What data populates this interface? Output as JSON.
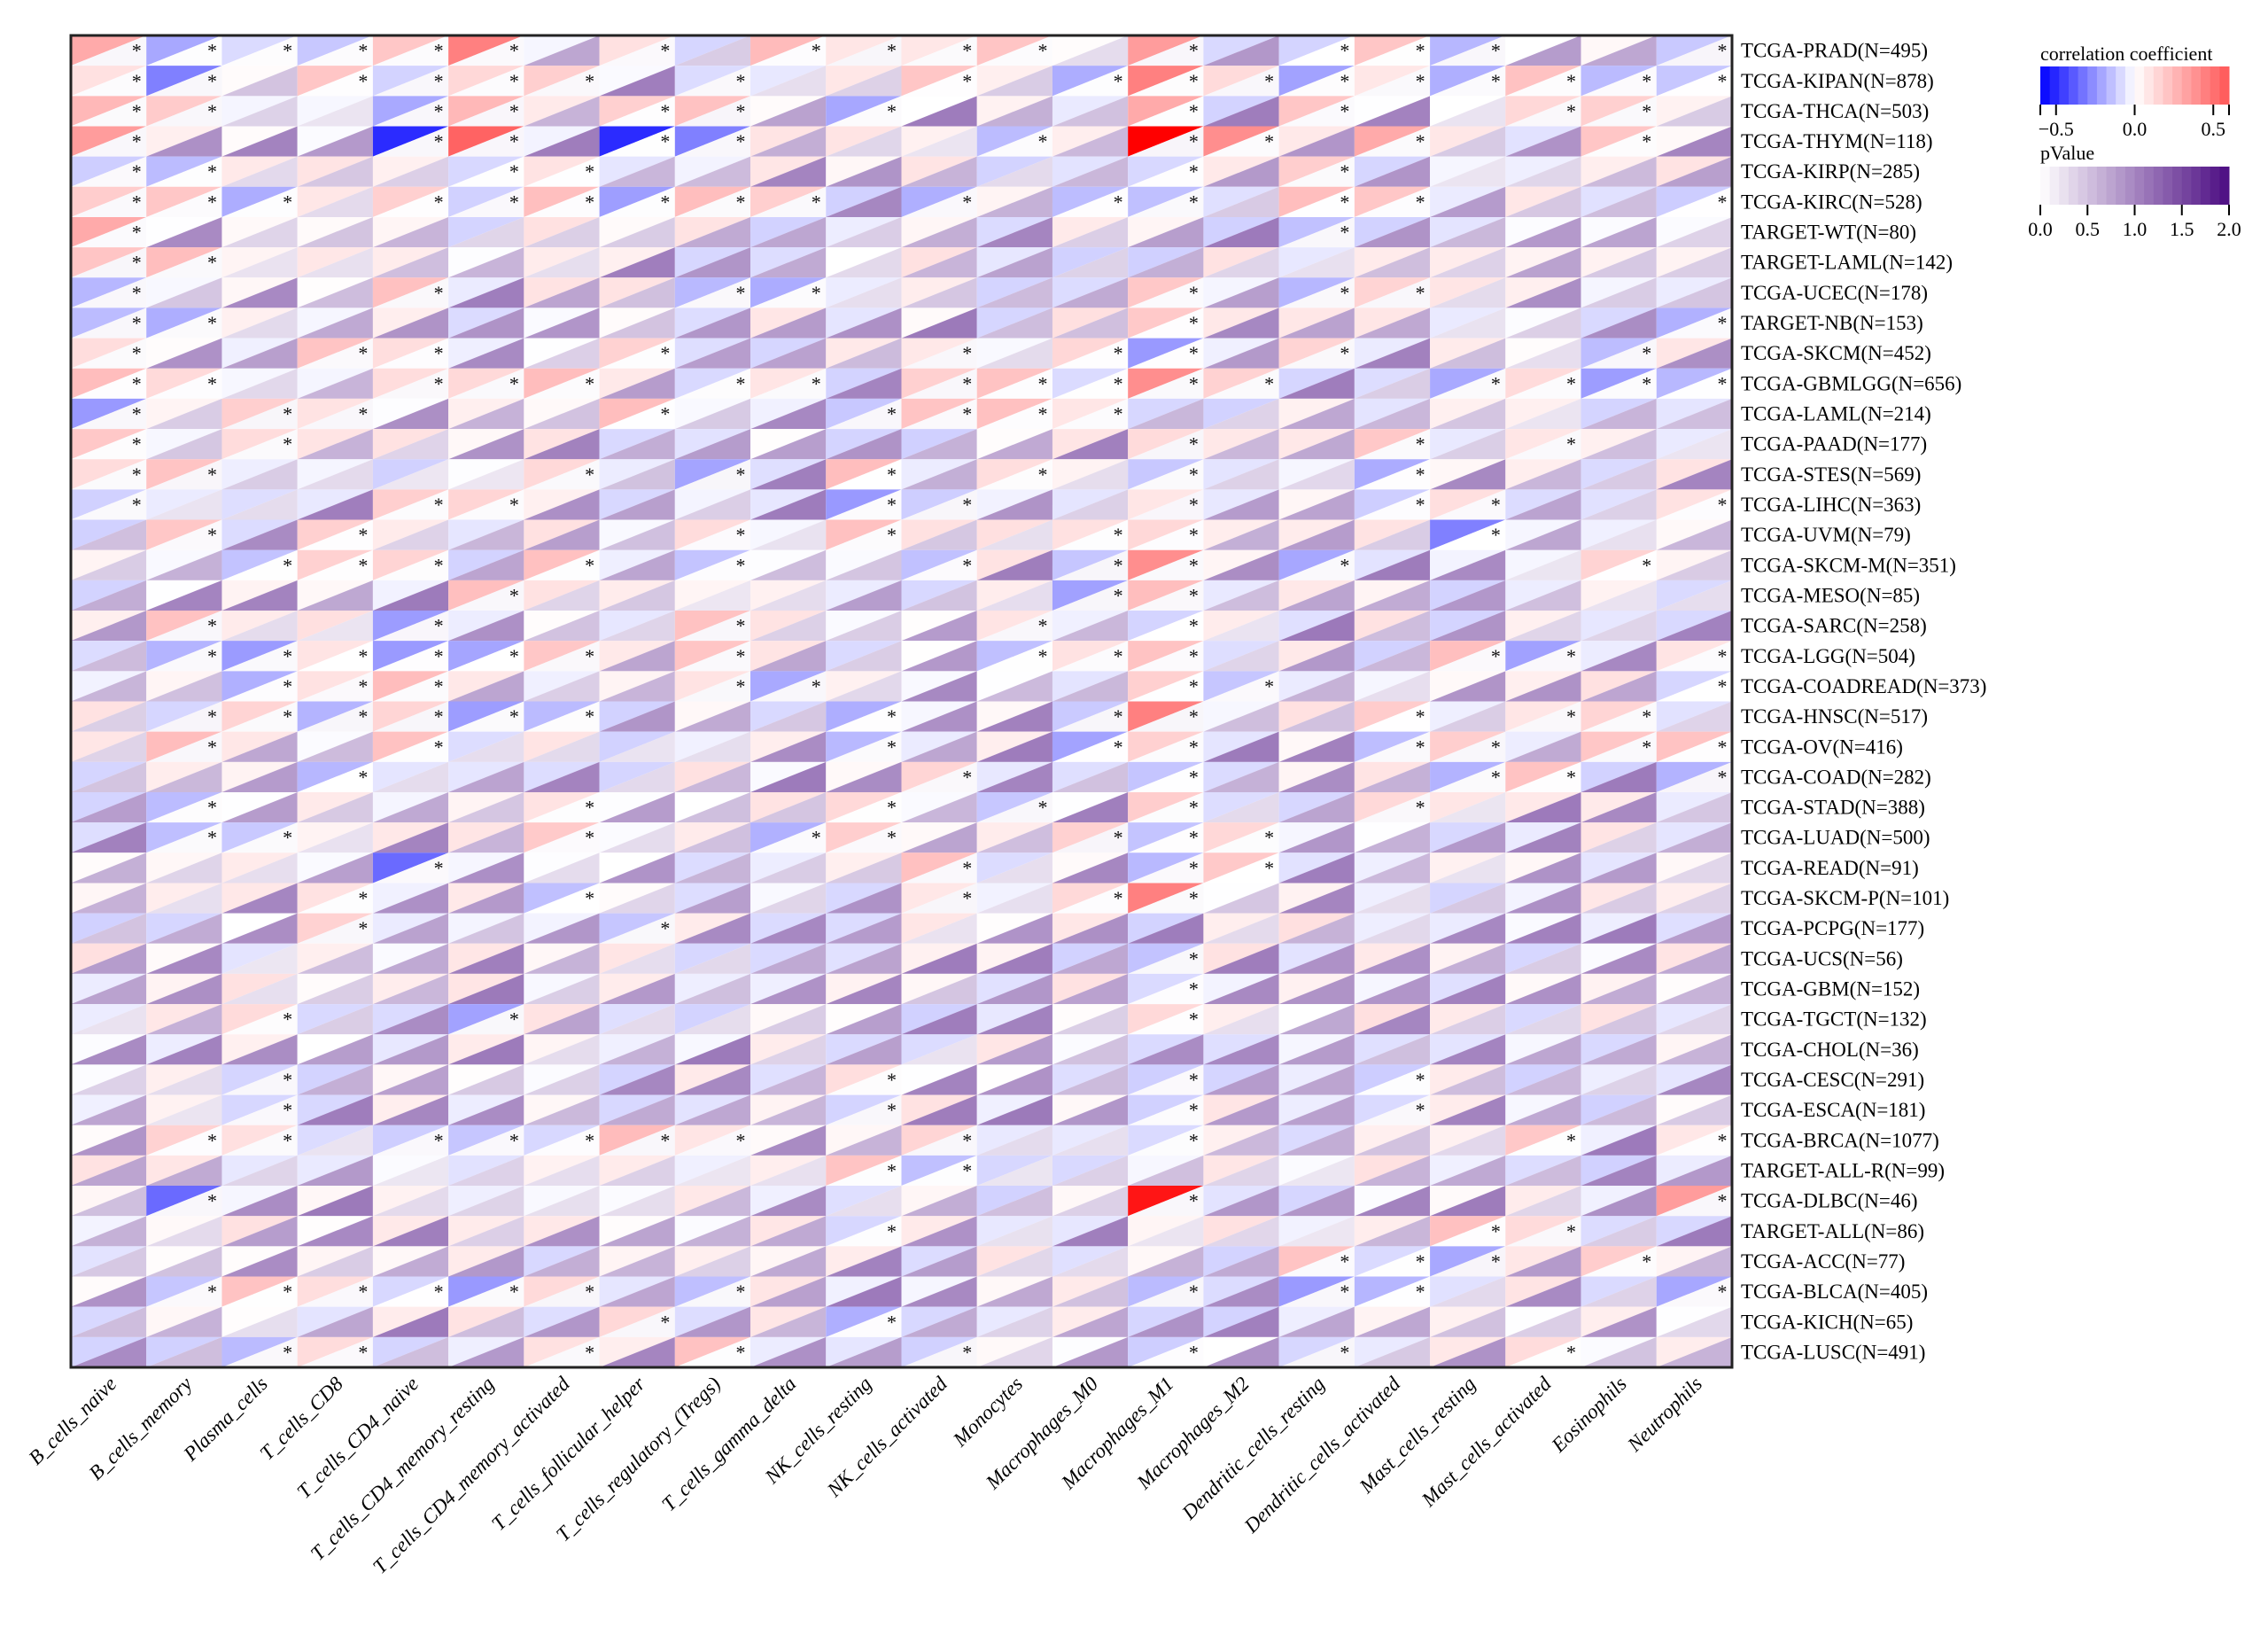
{
  "chart_data": {
    "type": "heatmap",
    "subtype": "split-triangle correlation heatmap",
    "title": "",
    "columns": [
      "B_cells_naive",
      "B_cells_memory",
      "Plasma_cells",
      "T_cells_CD8",
      "T_cells_CD4_naive",
      "T_cells_CD4_memory_resting",
      "T_cells_CD4_memory_activated",
      "T_cells_follicular_helper",
      "T_cells_regulatory_(Tregs)",
      "T_cells_gamma_delta",
      "NK_cells_resting",
      "NK_cells_activated",
      "Monocytes",
      "Macrophages_M0",
      "Macrophages_M1",
      "Macrophages_M2",
      "Dendritic_cells_resting",
      "Dendritic_cells_activated",
      "Mast_cells_resting",
      "Mast_cells_activated",
      "Eosinophils",
      "Neutrophils"
    ],
    "rows": [
      "TCGA-PRAD(N=495)",
      "TCGA-KIPAN(N=878)",
      "TCGA-THCA(N=503)",
      "TCGA-THYM(N=118)",
      "TCGA-KIRP(N=285)",
      "TCGA-KIRC(N=528)",
      "TARGET-WT(N=80)",
      "TARGET-LAML(N=142)",
      "TCGA-UCEC(N=178)",
      "TARGET-NB(N=153)",
      "TCGA-SKCM(N=452)",
      "TCGA-GBMLGG(N=656)",
      "TCGA-LAML(N=214)",
      "TCGA-PAAD(N=177)",
      "TCGA-STES(N=569)",
      "TCGA-LIHC(N=363)",
      "TCGA-UVM(N=79)",
      "TCGA-SKCM-M(N=351)",
      "TCGA-MESO(N=85)",
      "TCGA-SARC(N=258)",
      "TCGA-LGG(N=504)",
      "TCGA-COADREAD(N=373)",
      "TCGA-HNSC(N=517)",
      "TCGA-OV(N=416)",
      "TCGA-COAD(N=282)",
      "TCGA-STAD(N=388)",
      "TCGA-LUAD(N=500)",
      "TCGA-READ(N=91)",
      "TCGA-SKCM-P(N=101)",
      "TCGA-PCPG(N=177)",
      "TCGA-UCS(N=56)",
      "TCGA-GBM(N=152)",
      "TCGA-TGCT(N=132)",
      "TCGA-CHOL(N=36)",
      "TCGA-CESC(N=291)",
      "TCGA-ESCA(N=181)",
      "TCGA-BRCA(N=1077)",
      "TARGET-ALL-R(N=99)",
      "TCGA-DLBC(N=46)",
      "TARGET-ALL(N=86)",
      "TCGA-ACC(N=77)",
      "TCGA-BLCA(N=405)",
      "TCGA-KICH(N=65)",
      "TCGA-LUSC(N=491)"
    ],
    "significant": [
      [
        0,
        1,
        2,
        3,
        4,
        5,
        7,
        9,
        10,
        11,
        12,
        14,
        16,
        17,
        18,
        21
      ],
      [
        0,
        1,
        3,
        4,
        5,
        6,
        8,
        11,
        13,
        14,
        15,
        16,
        17,
        18,
        19,
        20,
        21
      ],
      [
        0,
        1,
        4,
        5,
        7,
        8,
        10,
        14,
        16,
        19,
        20
      ],
      [
        0,
        4,
        5,
        7,
        8,
        12,
        14,
        15,
        17,
        20
      ],
      [
        0,
        1,
        5,
        6,
        14,
        16
      ],
      [
        0,
        1,
        2,
        4,
        5,
        6,
        7,
        8,
        9,
        11,
        13,
        14,
        16,
        17,
        21
      ],
      [
        0,
        16
      ],
      [
        0,
        1
      ],
      [
        0,
        4,
        8,
        9,
        14,
        16,
        17
      ],
      [
        0,
        1,
        14,
        21
      ],
      [
        0,
        3,
        4,
        7,
        11,
        13,
        14,
        16,
        20
      ],
      [
        0,
        1,
        4,
        5,
        6,
        8,
        9,
        11,
        12,
        13,
        14,
        15,
        18,
        19,
        20,
        21
      ],
      [
        0,
        2,
        3,
        7,
        10,
        11,
        12,
        13
      ],
      [
        0,
        2,
        14,
        17,
        19
      ],
      [
        0,
        1,
        6,
        8,
        10,
        12,
        14,
        17
      ],
      [
        0,
        4,
        5,
        10,
        11,
        14,
        17,
        18,
        21
      ],
      [
        1,
        3,
        8,
        10,
        13,
        14,
        18
      ],
      [
        2,
        3,
        4,
        6,
        8,
        11,
        13,
        14,
        16,
        20
      ],
      [
        5,
        13,
        14
      ],
      [
        1,
        4,
        8,
        12,
        14
      ],
      [
        1,
        2,
        3,
        4,
        5,
        6,
        8,
        12,
        13,
        14,
        18,
        19,
        21
      ],
      [
        2,
        3,
        4,
        8,
        9,
        14,
        15,
        21
      ],
      [
        1,
        2,
        3,
        4,
        5,
        6,
        10,
        13,
        14,
        17,
        19,
        20
      ],
      [
        1,
        4,
        10,
        13,
        14,
        17,
        18,
        20,
        21
      ],
      [
        3,
        11,
        14,
        18,
        19,
        21
      ],
      [
        1,
        6,
        10,
        12,
        14,
        17
      ],
      [
        1,
        2,
        6,
        9,
        10,
        13,
        14,
        15
      ],
      [
        4,
        11,
        14,
        15
      ],
      [
        3,
        6,
        11,
        13,
        14
      ],
      [
        3,
        7
      ],
      [
        14
      ],
      [
        14
      ],
      [
        2,
        5,
        14
      ],
      [],
      [
        2,
        10,
        14,
        17
      ],
      [
        2,
        10,
        14,
        17
      ],
      [
        1,
        2,
        4,
        5,
        6,
        7,
        8,
        11,
        14,
        19,
        21
      ],
      [
        10,
        11
      ],
      [
        1,
        14,
        21
      ],
      [
        10,
        18,
        19
      ],
      [
        16,
        17,
        18,
        20
      ],
      [
        1,
        2,
        3,
        4,
        5,
        6,
        8,
        14,
        16,
        17,
        21
      ],
      [
        7,
        10
      ],
      [
        2,
        3,
        6,
        8,
        11,
        14,
        16,
        19
      ]
    ],
    "strong_correlations": [
      {
        "row": 0,
        "col": 0,
        "r": 0.3
      },
      {
        "row": 0,
        "col": 5,
        "r": 0.45
      },
      {
        "row": 0,
        "col": 14,
        "r": 0.35
      },
      {
        "row": 1,
        "col": 1,
        "r": -0.3
      },
      {
        "row": 1,
        "col": 3,
        "r": 0.2
      },
      {
        "row": 1,
        "col": 14,
        "r": 0.45
      },
      {
        "row": 2,
        "col": 0,
        "r": 0.25
      },
      {
        "row": 2,
        "col": 5,
        "r": 0.25
      },
      {
        "row": 2,
        "col": 14,
        "r": 0.3
      },
      {
        "row": 3,
        "col": 0,
        "r": 0.35
      },
      {
        "row": 3,
        "col": 4,
        "r": -0.5
      },
      {
        "row": 3,
        "col": 5,
        "r": 0.55
      },
      {
        "row": 3,
        "col": 7,
        "r": -0.5
      },
      {
        "row": 3,
        "col": 8,
        "r": -0.3
      },
      {
        "row": 3,
        "col": 14,
        "r": 1.0
      },
      {
        "row": 3,
        "col": 15,
        "r": 0.4
      },
      {
        "row": 3,
        "col": 17,
        "r": 0.3
      },
      {
        "row": 3,
        "col": 20,
        "r": 0.2
      },
      {
        "row": 6,
        "col": 0,
        "r": 0.3
      },
      {
        "row": 38,
        "col": 14,
        "r": 0.9
      },
      {
        "row": 38,
        "col": 1,
        "r": -0.35
      },
      {
        "row": 38,
        "col": 21,
        "r": 0.35
      },
      {
        "row": 16,
        "col": 18,
        "r": -0.3
      },
      {
        "row": 22,
        "col": 14,
        "r": 0.45
      },
      {
        "row": 28,
        "col": 14,
        "r": 0.45
      },
      {
        "row": 27,
        "col": 4,
        "r": -0.35
      },
      {
        "row": 11,
        "col": 14,
        "r": 0.4
      },
      {
        "row": 17,
        "col": 14,
        "r": 0.4
      }
    ],
    "legend": {
      "correlation": {
        "title": "correlation coefficient",
        "ticks": [
          "−0.5",
          "0.0",
          "0.5"
        ],
        "range": [
          -0.6,
          0.6
        ],
        "low_color": "#0000ff",
        "mid_color": "#ffffff",
        "high_color": "#ff5555"
      },
      "pvalue": {
        "title": "pValue",
        "ticks": [
          "0.0",
          "0.5",
          "1.0",
          "1.5",
          "2.0"
        ],
        "range": [
          0,
          2
        ],
        "low_color": "#ffffff",
        "high_color": "#4b0c82"
      }
    },
    "marker": "*",
    "legend_position": "top-right"
  }
}
